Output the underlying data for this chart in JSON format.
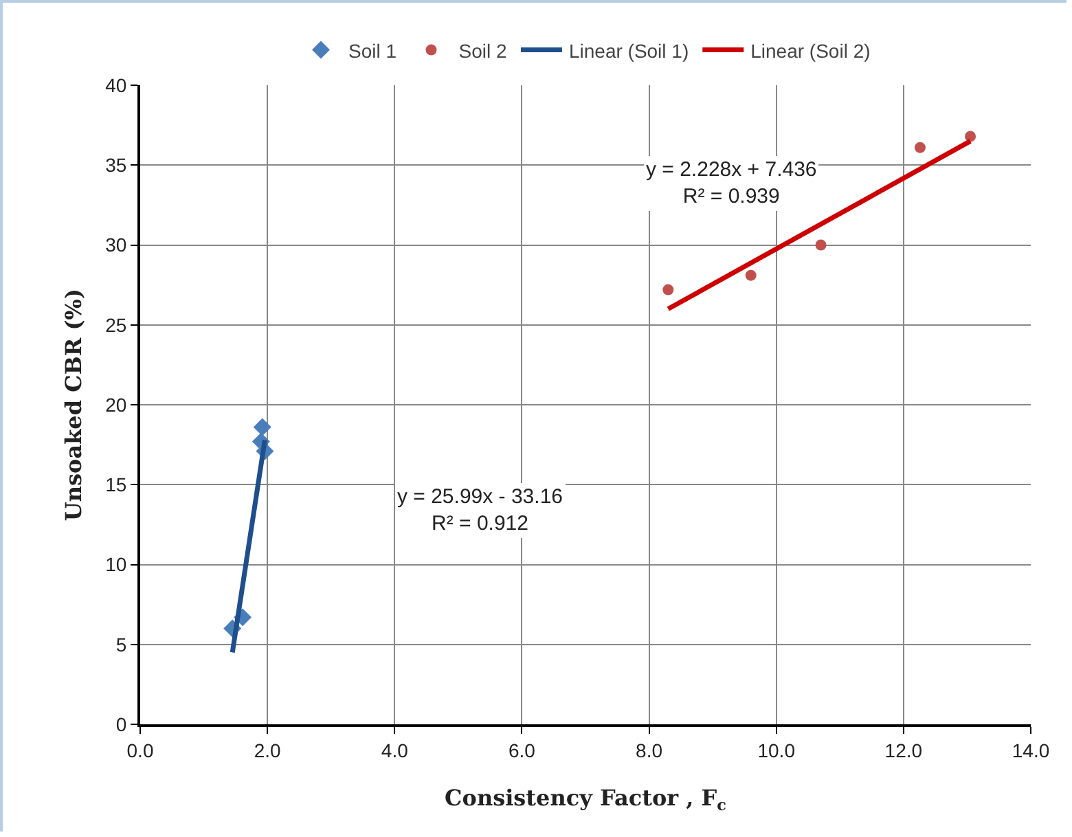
{
  "chart_data": {
    "type": "scatter",
    "xlabel": "Consistency Factor , F$_{c}$",
    "ylabel": "Unsoaked CBR (%)",
    "series": [
      {
        "name": "Soil 1",
        "marker": "diamond",
        "color": "#4a7ebb",
        "x": [
          1.45,
          1.61,
          1.9,
          1.92,
          1.96
        ],
        "values": [
          6.0,
          6.7,
          17.7,
          18.6,
          17.1
        ]
      },
      {
        "name": "Soil 2",
        "marker": "circle",
        "color": "#c0504d",
        "x": [
          8.3,
          9.6,
          10.7,
          12.26,
          13.05
        ],
        "values": [
          27.2,
          28.1,
          30.0,
          36.1,
          36.8
        ]
      },
      {
        "name": "Linear (Soil 1)",
        "type": "line",
        "marker": "none",
        "color": "#1f4e8c",
        "x": [
          1.45,
          1.96
        ],
        "values": [
          4.5,
          17.8
        ]
      },
      {
        "name": "Linear (Soil 2)",
        "type": "line",
        "marker": "none",
        "color": "#cc0000",
        "x": [
          8.3,
          13.05
        ],
        "values": [
          26.0,
          36.5
        ]
      }
    ],
    "annotations": [
      "y = 25.99x - 33.16\nR² = 0.912",
      "y = 2.228x + 7.436\nR² = 0.939"
    ],
    "xlim": [
      0,
      14
    ],
    "xticks": [
      {
        "value": 0,
        "label": "0.0"
      },
      {
        "value": 2,
        "label": "2.0"
      },
      {
        "value": 4,
        "label": "4.0"
      },
      {
        "value": 6,
        "label": "6.0"
      },
      {
        "value": 8,
        "label": "8.0"
      },
      {
        "value": 10,
        "label": "10.0"
      },
      {
        "value": 12,
        "label": "12.0"
      },
      {
        "value": 14,
        "label": "14.0"
      }
    ],
    "ylim": [
      0,
      40
    ],
    "yticks": [
      0,
      5,
      10,
      15,
      20,
      25,
      30,
      35,
      40
    ],
    "grid": true,
    "legend": "top",
    "line_style": "solid"
  }
}
